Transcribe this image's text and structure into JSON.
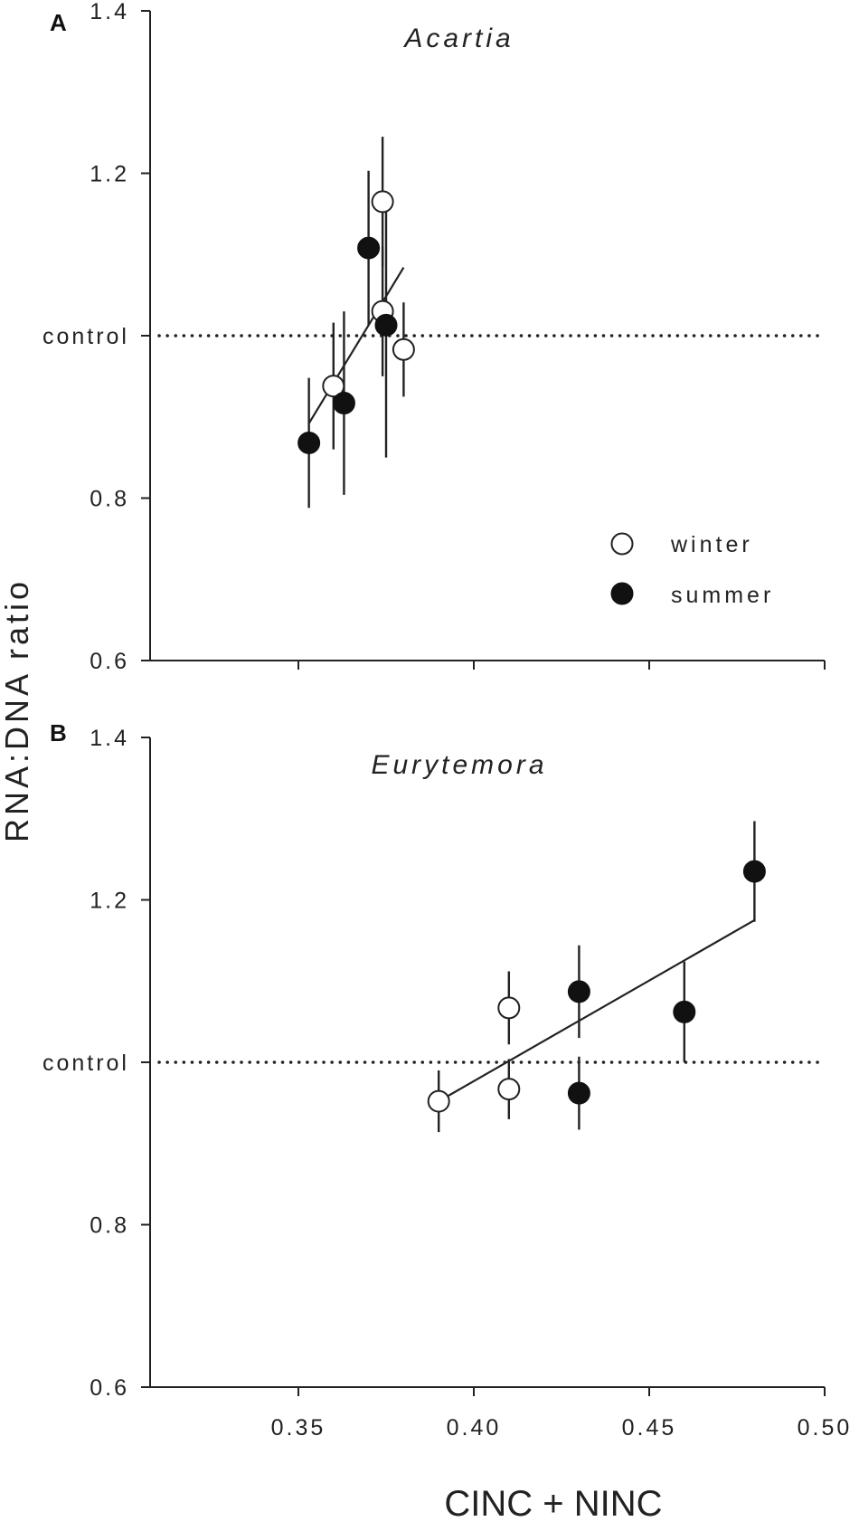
{
  "chart_data": [
    {
      "panel": "A",
      "type": "scatter",
      "title": "Acartia",
      "ylim": [
        0.6,
        1.4
      ],
      "yticks": [
        "0.6",
        "0.8",
        "1.2",
        "1.4"
      ],
      "control_label": "control",
      "control_value": 1.0,
      "series": [
        {
          "name": "winter",
          "points": [
            {
              "x": 0.36,
              "y": 0.938,
              "err": 0.078
            },
            {
              "x": 0.374,
              "y": 1.165,
              "err": 0.08
            },
            {
              "x": 0.374,
              "y": 1.03,
              "err": 0.08
            },
            {
              "x": 0.38,
              "y": 0.983,
              "err": 0.058
            }
          ]
        },
        {
          "name": "summer",
          "points": [
            {
              "x": 0.353,
              "y": 0.868,
              "err": 0.08
            },
            {
              "x": 0.37,
              "y": 1.108,
              "err": 0.095
            },
            {
              "x": 0.363,
              "y": 0.917,
              "err": 0.113
            },
            {
              "x": 0.375,
              "y": 1.013,
              "err": 0.163
            }
          ]
        }
      ],
      "fit": {
        "x": [
          0.353,
          0.38
        ],
        "y": [
          0.892,
          1.084
        ]
      }
    },
    {
      "panel": "B",
      "type": "scatter",
      "title": "Eurytemora",
      "ylim": [
        0.6,
        1.4
      ],
      "yticks": [
        "0.6",
        "0.8",
        "1.2",
        "1.4"
      ],
      "xticks": [
        "0.35",
        "0.40",
        "0.45",
        "0.50"
      ],
      "control_label": "control",
      "control_value": 1.0,
      "series": [
        {
          "name": "winter",
          "points": [
            {
              "x": 0.39,
              "y": 0.952,
              "err": 0.038
            },
            {
              "x": 0.41,
              "y": 1.067,
              "err": 0.045
            },
            {
              "x": 0.41,
              "y": 0.967,
              "err": 0.037
            }
          ]
        },
        {
          "name": "summer",
          "points": [
            {
              "x": 0.43,
              "y": 1.087,
              "err": 0.057
            },
            {
              "x": 0.43,
              "y": 0.962,
              "err": 0.045
            },
            {
              "x": 0.46,
              "y": 1.062,
              "err": 0.062
            },
            {
              "x": 0.48,
              "y": 1.235,
              "err": 0.062
            }
          ]
        }
      ],
      "fit": {
        "x": [
          0.39,
          0.48
        ],
        "y": [
          0.952,
          1.175
        ]
      }
    }
  ],
  "legend": {
    "winter": "winter",
    "summer": "summer"
  },
  "ylabel": "RNA:DNA ratio",
  "xlabel": "CINC + NINC"
}
